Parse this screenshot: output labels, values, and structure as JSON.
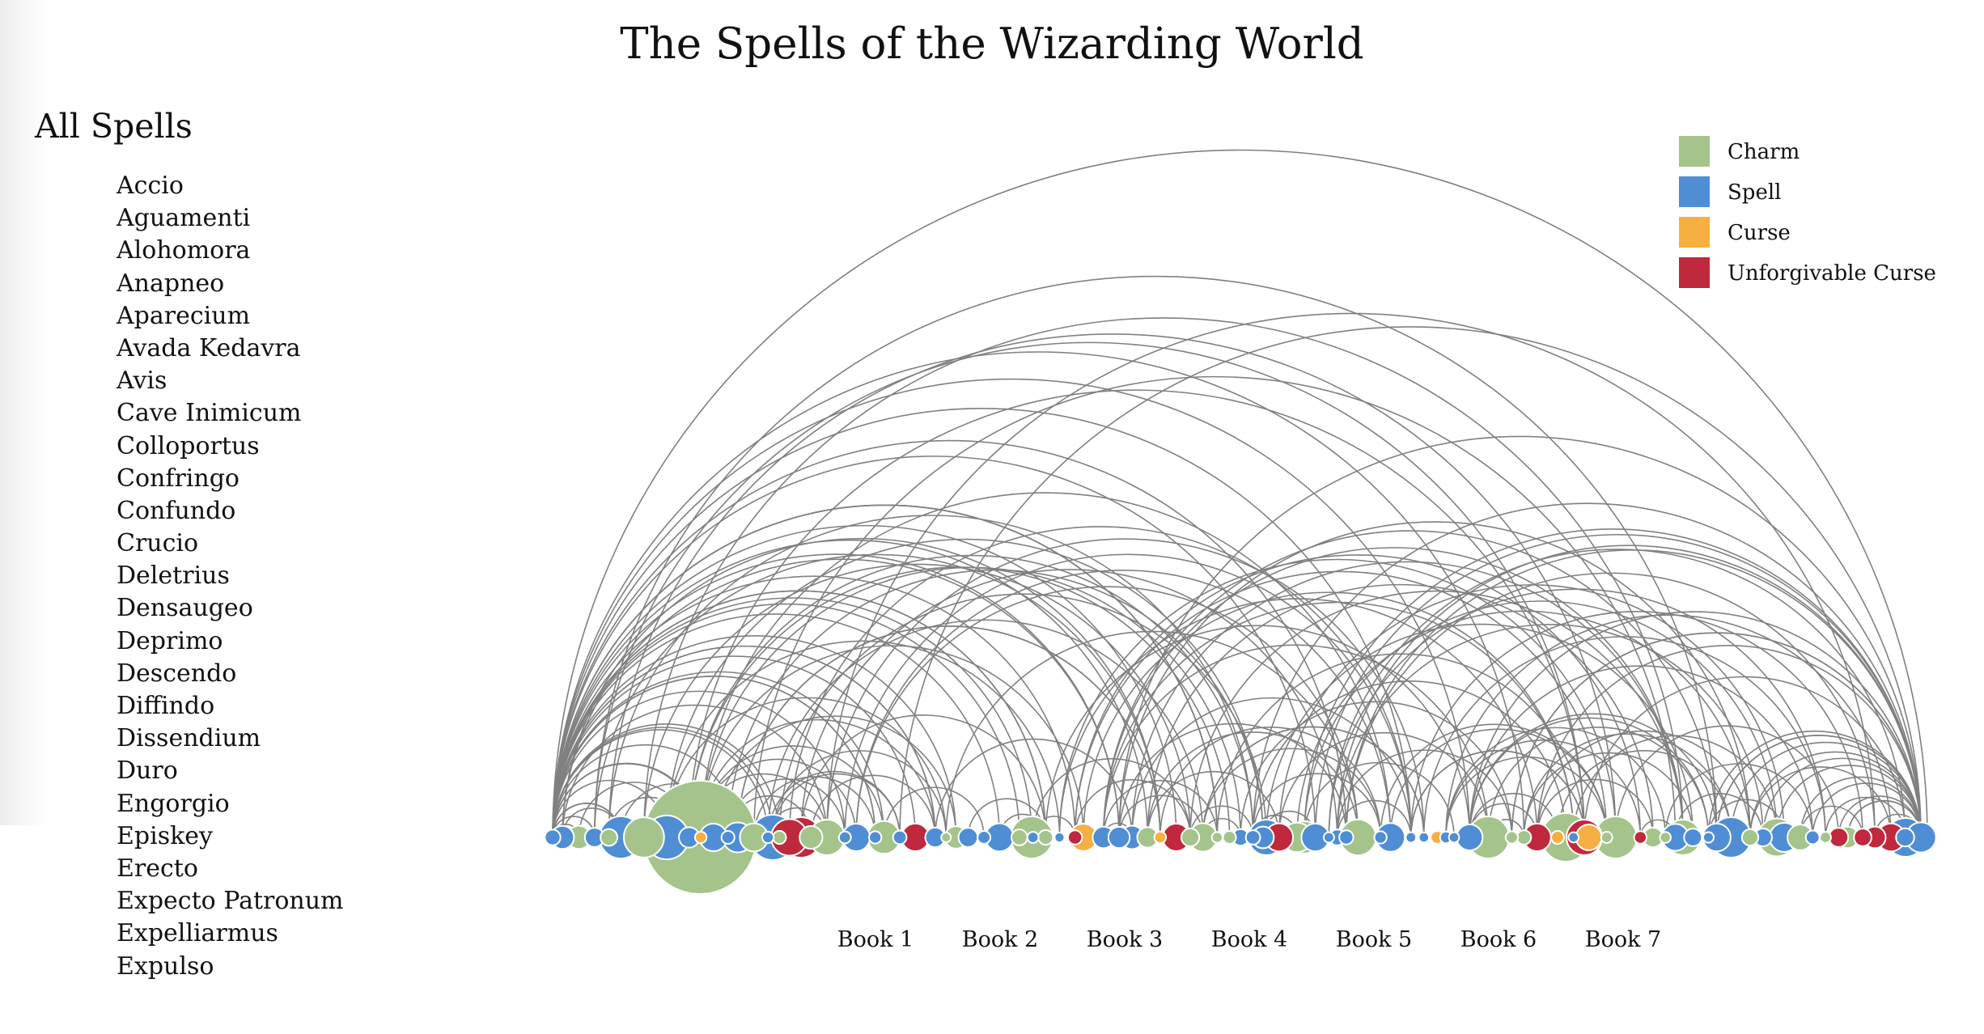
{
  "title": "The Spells of the Wizarding World",
  "sidebar": {
    "heading": "All Spells",
    "spells": [
      "Accio",
      "Aguamenti",
      "Alohomora",
      "Anapneo",
      "Aparecium",
      "Avada Kedavra",
      "Avis",
      "Cave Inimicum",
      "Colloportus",
      "Confringo",
      "Confundo",
      "Crucio",
      "Deletrius",
      "Densaugeo",
      "Deprimo",
      "Descendo",
      "Diffindo",
      "Dissendium",
      "Duro",
      "Engorgio",
      "Episkey",
      "Erecto",
      "Expecto Patronum",
      "Expelliarmus",
      "Expulso"
    ]
  },
  "chart_data": {
    "type": "arc diagram",
    "title": "The Spells of the Wizarding World",
    "legend": {
      "placement": "top-right",
      "items": [
        {
          "label": "Charm",
          "color": "#a5c48b"
        },
        {
          "label": "Spell",
          "color": "#4f8ed4"
        },
        {
          "label": "Curse",
          "color": "#f5b041"
        },
        {
          "label": "Unforgivable Curse",
          "color": "#c0283d"
        }
      ]
    },
    "x_labels": [
      "Book 1",
      "Book 2",
      "Book 3",
      "Book 4",
      "Book 5",
      "Book 6",
      "Book 7"
    ],
    "edge_color": "#808080"
  }
}
